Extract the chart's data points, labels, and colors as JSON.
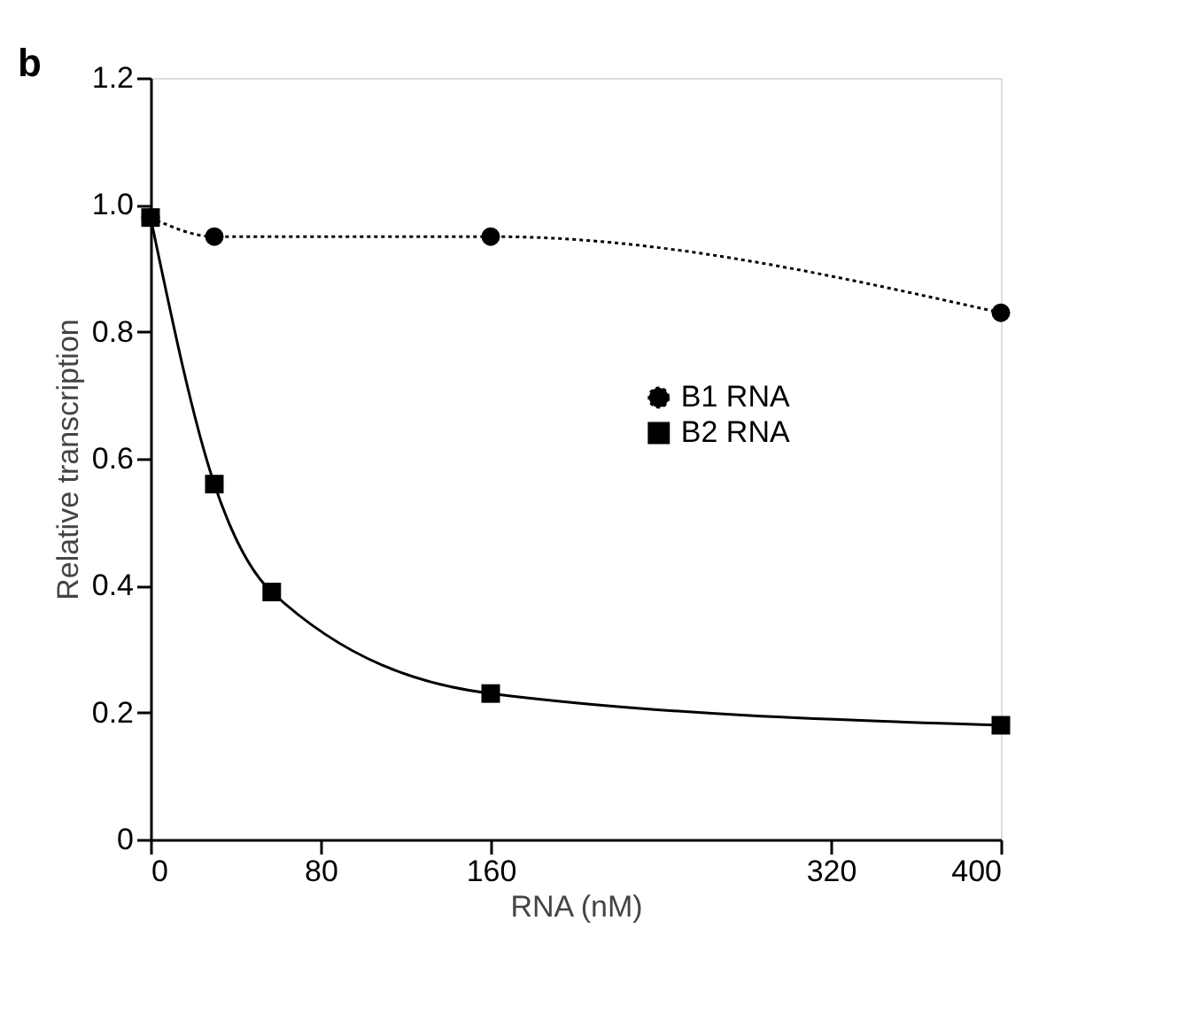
{
  "chart_data": {
    "type": "line",
    "xlabel": "RNA (nM)",
    "ylabel": "Relative transcription",
    "annotations": [
      "b"
    ],
    "xlim": [
      0,
      400
    ],
    "xticks": [
      0,
      80,
      160,
      320,
      400
    ],
    "ylim": [
      0,
      1.2
    ],
    "yticks": [
      0,
      0.2,
      0.4,
      0.6,
      0.8,
      {
        "value": 1.0,
        "label": "1.0"
      },
      1.2
    ],
    "grid": false,
    "legend": "right",
    "series": [
      {
        "name": "B1 RNA",
        "color": "#000000",
        "line_style": "dotted",
        "marker": "circle",
        "x": [
          0,
          30,
          160,
          400
        ],
        "values": [
          0.98,
          0.95,
          0.95,
          0.83
        ]
      },
      {
        "name": "B2 RNA",
        "color": "#000000",
        "line_style": "solid",
        "marker": "square",
        "x": [
          0,
          30,
          57,
          160,
          400
        ],
        "values": [
          0.98,
          0.56,
          0.39,
          0.23,
          0.18
        ]
      }
    ]
  }
}
